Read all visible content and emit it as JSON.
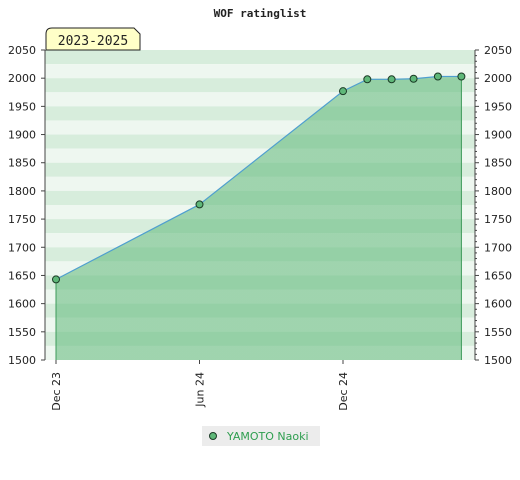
{
  "chart_data": {
    "type": "area",
    "title": "WOF ratinglist",
    "badge": "2023-2025",
    "ylim": [
      1500,
      2050
    ],
    "yticks": [
      1500,
      1550,
      1600,
      1650,
      1700,
      1750,
      1800,
      1850,
      1900,
      1950,
      2000,
      2050
    ],
    "xticks": [
      {
        "label": "Dec 23",
        "date": "2023-12-01"
      },
      {
        "label": "Jun 24",
        "date": "2024-06-01"
      },
      {
        "label": "Dec 24",
        "date": "2024-12-01"
      }
    ],
    "series": [
      {
        "name": "YAMOTO Naoki",
        "color": "#6fbf8a",
        "points": [
          {
            "x": "2023-12-01",
            "y": 1643
          },
          {
            "x": "2024-06-01",
            "y": 1776
          },
          {
            "x": "2024-12-01",
            "y": 1977
          },
          {
            "x": "2025-01-01",
            "y": 1998
          },
          {
            "x": "2025-02-01",
            "y": 1998
          },
          {
            "x": "2025-03-01",
            "y": 1999
          },
          {
            "x": "2025-04-01",
            "y": 2003
          },
          {
            "x": "2025-05-01",
            "y": 2003
          }
        ]
      }
    ],
    "grid": true,
    "legend": "bottom-center"
  }
}
